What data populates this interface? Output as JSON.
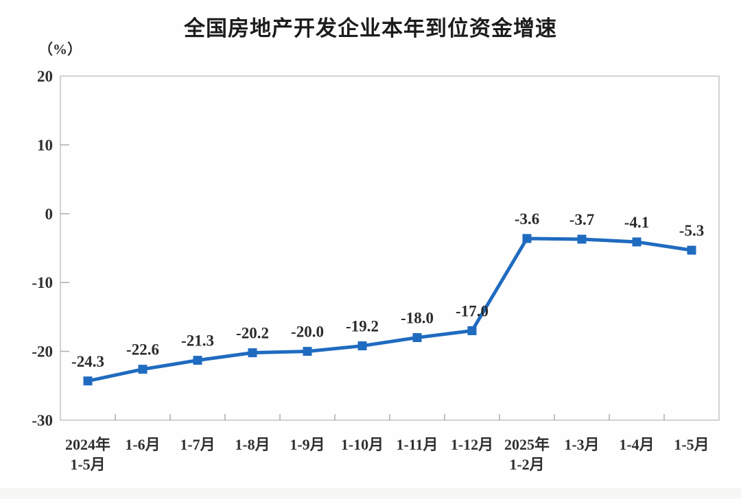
{
  "page": {
    "title": "全国房地产开发企业本年到位资金增速",
    "y_axis_unit": "（%）"
  },
  "colors": {
    "line": "#1F6BC0",
    "marker": "#1F6BC0",
    "plot_border": "#c6c6c6",
    "axis_tick": "#b0b0b0",
    "text": "#2f2f2f",
    "title_text": "#1c1c1c"
  },
  "chart_data": {
    "type": "line",
    "title": "全国房地产开发企业本年到位资金增速",
    "ylabel": "（%）",
    "categories": [
      "2024年\n1-5月",
      "1-6月",
      "1-7月",
      "1-8月",
      "1-9月",
      "1-10月",
      "1-11月",
      "1-12月",
      "2025年\n1-2月",
      "1-3月",
      "1-4月",
      "1-5月"
    ],
    "values": [
      -24.3,
      -22.6,
      -21.3,
      -20.2,
      -20.0,
      -19.2,
      -18.0,
      -17.0,
      -3.6,
      -3.7,
      -4.1,
      -5.3
    ],
    "data_labels": [
      "-24.3",
      "-22.6",
      "-21.3",
      "-20.2",
      "-20.0",
      "-19.2",
      "-18.0",
      "-17.0",
      "-3.6",
      "-3.7",
      "-4.1",
      "-5.3"
    ],
    "ylim": [
      -30,
      20
    ],
    "yticks": [
      20,
      10,
      0,
      -10,
      -20,
      -30
    ],
    "grid": false,
    "legend": "none",
    "marker": "square",
    "xlabel": ""
  }
}
